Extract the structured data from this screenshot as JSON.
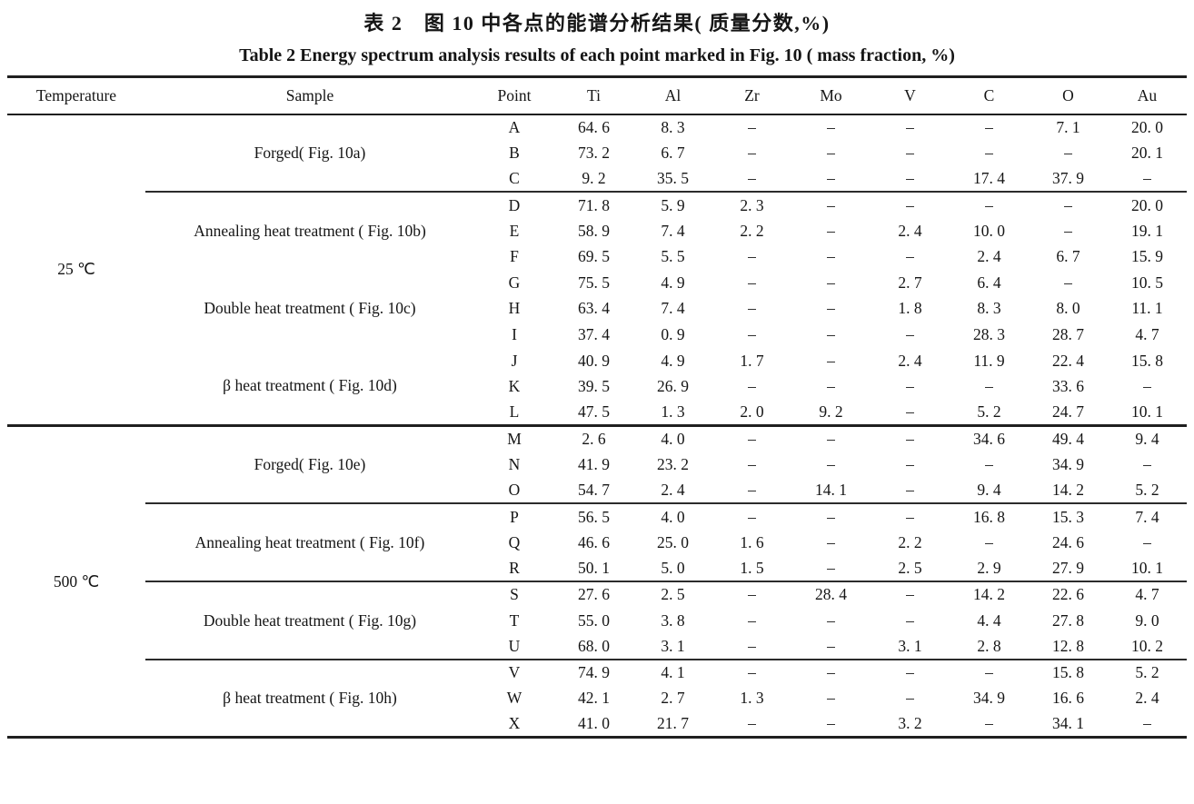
{
  "captions": {
    "cn": "表 2　图 10 中各点的能谱分析结果( 质量分数,%)",
    "en": "Table 2   Energy spectrum analysis results of each point marked in Fig. 10 ( mass fraction, %)"
  },
  "table": {
    "columns": [
      "Temperature",
      "Sample",
      "Point",
      "Ti",
      "Al",
      "Zr",
      "Mo",
      "V",
      "C",
      "O",
      "Au"
    ],
    "groups": [
      {
        "temperature": "25 ℃",
        "samples": [
          {
            "label": "Forged( Fig. 10a)",
            "divider_below": true,
            "rows": [
              {
                "point": "A",
                "values": [
                  "64. 6",
                  "8. 3",
                  "–",
                  "–",
                  "–",
                  "–",
                  "7. 1",
                  "20. 0"
                ]
              },
              {
                "point": "B",
                "values": [
                  "73. 2",
                  "6. 7",
                  "–",
                  "–",
                  "–",
                  "–",
                  "–",
                  "20. 1"
                ]
              },
              {
                "point": "C",
                "values": [
                  "9. 2",
                  "35. 5",
                  "–",
                  "–",
                  "–",
                  "17. 4",
                  "37. 9",
                  "–"
                ]
              }
            ]
          },
          {
            "label": "Annealing heat treatment ( Fig. 10b)",
            "divider_below": false,
            "rows": [
              {
                "point": "D",
                "values": [
                  "71. 8",
                  "5. 9",
                  "2. 3",
                  "–",
                  "–",
                  "–",
                  "–",
                  "20. 0"
                ]
              },
              {
                "point": "E",
                "values": [
                  "58. 9",
                  "7. 4",
                  "2. 2",
                  "–",
                  "2. 4",
                  "10. 0",
                  "–",
                  "19. 1"
                ]
              },
              {
                "point": "F",
                "values": [
                  "69. 5",
                  "5. 5",
                  "–",
                  "–",
                  "–",
                  "2. 4",
                  "6. 7",
                  "15. 9"
                ]
              }
            ]
          },
          {
            "label": "Double heat treatment ( Fig. 10c)",
            "divider_below": false,
            "rows": [
              {
                "point": "G",
                "values": [
                  "75. 5",
                  "4. 9",
                  "–",
                  "–",
                  "2. 7",
                  "6. 4",
                  "–",
                  "10. 5"
                ]
              },
              {
                "point": "H",
                "values": [
                  "63. 4",
                  "7. 4",
                  "–",
                  "–",
                  "1. 8",
                  "8. 3",
                  "8. 0",
                  "11. 1"
                ]
              },
              {
                "point": "I",
                "values": [
                  "37. 4",
                  "0. 9",
                  "–",
                  "–",
                  "–",
                  "28. 3",
                  "28. 7",
                  "4. 7"
                ]
              }
            ]
          },
          {
            "label": "β heat treatment ( Fig. 10d)",
            "divider_below": false,
            "rows": [
              {
                "point": "J",
                "values": [
                  "40. 9",
                  "4. 9",
                  "1. 7",
                  "–",
                  "2. 4",
                  "11. 9",
                  "22. 4",
                  "15. 8"
                ]
              },
              {
                "point": "K",
                "values": [
                  "39. 5",
                  "26. 9",
                  "–",
                  "–",
                  "–",
                  "–",
                  "33. 6",
                  "–"
                ]
              },
              {
                "point": "L",
                "values": [
                  "47. 5",
                  "1. 3",
                  "2. 0",
                  "9. 2",
                  "–",
                  "5. 2",
                  "24. 7",
                  "10. 1"
                ]
              }
            ]
          }
        ]
      },
      {
        "temperature": "500 ℃",
        "samples": [
          {
            "label": "Forged( Fig. 10e)",
            "divider_below": true,
            "rows": [
              {
                "point": "M",
                "values": [
                  "2. 6",
                  "4. 0",
                  "–",
                  "–",
                  "–",
                  "34. 6",
                  "49. 4",
                  "9. 4"
                ]
              },
              {
                "point": "N",
                "values": [
                  "41. 9",
                  "23. 2",
                  "–",
                  "–",
                  "–",
                  "–",
                  "34. 9",
                  "–"
                ]
              },
              {
                "point": "O",
                "values": [
                  "54. 7",
                  "2. 4",
                  "–",
                  "14. 1",
                  "–",
                  "9. 4",
                  "14. 2",
                  "5. 2"
                ]
              }
            ]
          },
          {
            "label": "Annealing heat treatment ( Fig. 10f)",
            "divider_below": true,
            "rows": [
              {
                "point": "P",
                "values": [
                  "56. 5",
                  "4. 0",
                  "–",
                  "–",
                  "–",
                  "16. 8",
                  "15. 3",
                  "7. 4"
                ]
              },
              {
                "point": "Q",
                "values": [
                  "46. 6",
                  "25. 0",
                  "1. 6",
                  "–",
                  "2. 2",
                  "–",
                  "24. 6",
                  "–"
                ]
              },
              {
                "point": "R",
                "values": [
                  "50. 1",
                  "5. 0",
                  "1. 5",
                  "–",
                  "2. 5",
                  "2. 9",
                  "27. 9",
                  "10. 1"
                ]
              }
            ]
          },
          {
            "label": "Double heat treatment ( Fig. 10g)",
            "divider_below": true,
            "rows": [
              {
                "point": "S",
                "values": [
                  "27. 6",
                  "2. 5",
                  "–",
                  "28. 4",
                  "–",
                  "14. 2",
                  "22. 6",
                  "4. 7"
                ]
              },
              {
                "point": "T",
                "values": [
                  "55. 0",
                  "3. 8",
                  "–",
                  "–",
                  "–",
                  "4. 4",
                  "27. 8",
                  "9. 0"
                ]
              },
              {
                "point": "U",
                "values": [
                  "68. 0",
                  "3. 1",
                  "–",
                  "–",
                  "3. 1",
                  "2. 8",
                  "12. 8",
                  "10. 2"
                ]
              }
            ]
          },
          {
            "label": "β heat treatment ( Fig. 10h)",
            "divider_below": false,
            "rows": [
              {
                "point": "V",
                "values": [
                  "74. 9",
                  "4. 1",
                  "–",
                  "–",
                  "–",
                  "–",
                  "15. 8",
                  "5. 2"
                ]
              },
              {
                "point": "W",
                "values": [
                  "42. 1",
                  "2. 7",
                  "1. 3",
                  "–",
                  "–",
                  "34. 9",
                  "16. 6",
                  "2. 4"
                ]
              },
              {
                "point": "X",
                "values": [
                  "41. 0",
                  "21. 7",
                  "–",
                  "–",
                  "3. 2",
                  "–",
                  "34. 1",
                  "–"
                ]
              }
            ]
          }
        ]
      }
    ]
  }
}
